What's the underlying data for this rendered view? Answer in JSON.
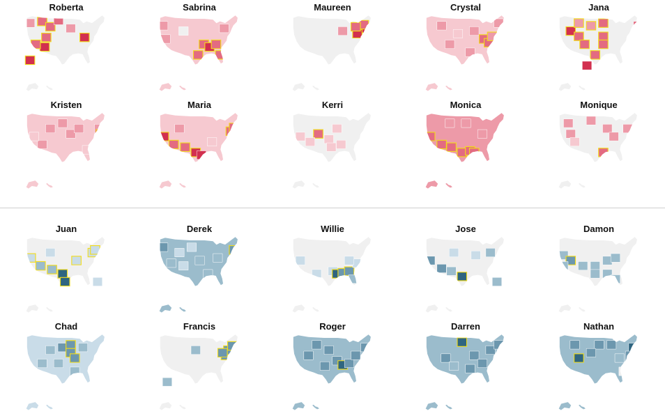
{
  "colors": {
    "land": "#f0f0f0",
    "highlight_border": "#f2dc1b",
    "female": [
      "#f0f0f0",
      "#f6c9d0",
      "#ed9aa8",
      "#e36b81",
      "#d2304f"
    ],
    "male": [
      "#f0f0f0",
      "#c9dce8",
      "#9bbccc",
      "#6c97ae",
      "#2f6580"
    ]
  },
  "groups": [
    {
      "name": "female",
      "maps": [
        {
          "name": "Roberta",
          "base": 0,
          "regions": [
            [
              0.05,
              0.15,
              2
            ],
            [
              0.2,
              0.12,
              3
            ],
            [
              0.3,
              0.22,
              3
            ],
            [
              0.25,
              0.42,
              3
            ],
            [
              0.23,
              0.6,
              4
            ],
            [
              0.12,
              0.55,
              3
            ],
            [
              0.4,
              0.1,
              3
            ],
            [
              0.55,
              0.25,
              2
            ],
            [
              0.72,
              0.42,
              4
            ],
            [
              0.05,
              0.85,
              4
            ]
          ],
          "highlights": [
            1,
            2,
            3,
            4,
            5,
            8,
            9
          ]
        },
        {
          "name": "Sabrina",
          "base": 1,
          "regions": [
            [
              0.05,
              0.2,
              2
            ],
            [
              0.08,
              0.45,
              2
            ],
            [
              0.55,
              0.55,
              3
            ],
            [
              0.62,
              0.6,
              4
            ],
            [
              0.7,
              0.55,
              3
            ],
            [
              0.75,
              0.75,
              3
            ],
            [
              0.48,
              0.75,
              3
            ],
            [
              0.8,
              0.25,
              2
            ],
            [
              0.3,
              0.3,
              0
            ]
          ],
          "highlights": [
            2,
            3,
            4,
            5,
            6
          ]
        },
        {
          "name": "Maureen",
          "base": 0,
          "regions": [
            [
              0.62,
              0.3,
              2
            ],
            [
              0.85,
              0.25,
              4
            ],
            [
              0.8,
              0.35,
              4
            ],
            [
              0.88,
              0.18,
              3
            ],
            [
              0.78,
              0.22,
              3
            ]
          ],
          "highlights": [
            1,
            2,
            3,
            4
          ]
        },
        {
          "name": "Crystal",
          "base": 1,
          "regions": [
            [
              0.2,
              0.2,
              2
            ],
            [
              0.4,
              0.35,
              1
            ],
            [
              0.6,
              0.3,
              2
            ],
            [
              0.72,
              0.45,
              3
            ],
            [
              0.78,
              0.52,
              3
            ],
            [
              0.82,
              0.4,
              2
            ],
            [
              0.55,
              0.7,
              2
            ],
            [
              0.3,
              0.55,
              2
            ],
            [
              0.9,
              0.15,
              2
            ]
          ],
          "highlights": [
            3,
            4,
            5
          ]
        },
        {
          "name": "Jana",
          "base": 0,
          "regions": [
            [
              0.15,
              0.3,
              4
            ],
            [
              0.25,
              0.4,
              3
            ],
            [
              0.25,
              0.15,
              2
            ],
            [
              0.4,
              0.2,
              2
            ],
            [
              0.55,
              0.15,
              3
            ],
            [
              0.55,
              0.4,
              3
            ],
            [
              0.55,
              0.55,
              3
            ],
            [
              0.45,
              0.75,
              3
            ],
            [
              0.32,
              0.55,
              3
            ],
            [
              0.35,
              0.95,
              4
            ],
            [
              0.98,
              0.2,
              3
            ]
          ],
          "highlights": [
            0,
            1,
            2,
            3,
            4,
            5,
            6,
            7,
            8
          ]
        },
        {
          "name": "Kristen",
          "base": 1,
          "regions": [
            [
              0.3,
              0.3,
              2
            ],
            [
              0.45,
              0.2,
              2
            ],
            [
              0.55,
              0.4,
              2
            ],
            [
              0.65,
              0.3,
              2
            ],
            [
              0.9,
              0.3,
              2
            ],
            [
              0.92,
              0.4,
              3
            ],
            [
              0.2,
              0.6,
              2
            ],
            [
              0.1,
              0.45,
              1
            ],
            [
              0.75,
              0.7,
              1
            ]
          ],
          "highlights": [
            5
          ]
        },
        {
          "name": "Maria",
          "base": 1,
          "regions": [
            [
              0.06,
              0.45,
              4
            ],
            [
              0.18,
              0.6,
              3
            ],
            [
              0.32,
              0.65,
              3
            ],
            [
              0.45,
              0.75,
              4
            ],
            [
              0.52,
              0.8,
              4
            ],
            [
              0.88,
              0.35,
              3
            ],
            [
              0.92,
              0.28,
              3
            ],
            [
              0.25,
              0.3,
              2
            ],
            [
              0.65,
              0.55,
              1
            ]
          ],
          "highlights": [
            0,
            1,
            2,
            3,
            5,
            6
          ]
        },
        {
          "name": "Kerri",
          "base": 0,
          "regions": [
            [
              0.32,
              0.4,
              3
            ],
            [
              0.45,
              0.5,
              1
            ],
            [
              0.55,
              0.3,
              1
            ],
            [
              0.6,
              0.6,
              1
            ],
            [
              0.48,
              0.65,
              1
            ],
            [
              0.22,
              0.55,
              1
            ],
            [
              0.1,
              0.45,
              1
            ],
            [
              0.98,
              0.4,
              2
            ]
          ],
          "highlights": [
            0
          ]
        },
        {
          "name": "Monica",
          "base": 2,
          "regions": [
            [
              0.06,
              0.45,
              3
            ],
            [
              0.2,
              0.6,
              3
            ],
            [
              0.32,
              0.65,
              3
            ],
            [
              0.45,
              0.75,
              3
            ],
            [
              0.55,
              0.72,
              3
            ],
            [
              0.6,
              0.75,
              3
            ],
            [
              0.3,
              0.2,
              2
            ],
            [
              0.5,
              0.2,
              2
            ],
            [
              0.7,
              0.4,
              2
            ]
          ],
          "highlights": [
            0,
            1,
            2,
            3,
            4,
            5
          ]
        },
        {
          "name": "Monique",
          "base": 0,
          "regions": [
            [
              0.12,
              0.2,
              2
            ],
            [
              0.15,
              0.4,
              2
            ],
            [
              0.4,
              0.15,
              2
            ],
            [
              0.6,
              0.3,
              2
            ],
            [
              0.68,
              0.45,
              2
            ],
            [
              0.85,
              0.3,
              2
            ],
            [
              0.55,
              0.75,
              3
            ],
            [
              0.2,
              0.55,
              1
            ]
          ],
          "highlights": [
            6
          ]
        }
      ]
    },
    {
      "name": "male",
      "maps": [
        {
          "name": "Juan",
          "base": 0,
          "regions": [
            [
              0.06,
              0.4,
              1
            ],
            [
              0.18,
              0.55,
              2
            ],
            [
              0.32,
              0.62,
              2
            ],
            [
              0.45,
              0.7,
              4
            ],
            [
              0.48,
              0.85,
              4
            ],
            [
              0.62,
              0.45,
              1
            ],
            [
              0.82,
              0.3,
              1
            ],
            [
              0.85,
              0.25,
              1
            ],
            [
              0.88,
              0.85,
              1
            ],
            [
              0.3,
              0.3,
              1
            ]
          ],
          "highlights": [
            0,
            1,
            2,
            3,
            4,
            5,
            6,
            7
          ]
        },
        {
          "name": "Derek",
          "base": 2,
          "regions": [
            [
              0.05,
              0.2,
              3
            ],
            [
              0.25,
              0.3,
              1
            ],
            [
              0.4,
              0.2,
              1
            ],
            [
              0.3,
              0.55,
              1
            ],
            [
              0.5,
              0.45,
              2
            ],
            [
              0.72,
              0.4,
              2
            ],
            [
              0.92,
              0.25,
              3
            ],
            [
              0.6,
              0.7,
              2
            ],
            [
              0.15,
              0.5,
              2
            ]
          ],
          "highlights": [
            6
          ]
        },
        {
          "name": "Willie",
          "base": 0,
          "regions": [
            [
              0.1,
              0.45,
              1
            ],
            [
              0.3,
              0.7,
              1
            ],
            [
              0.5,
              0.65,
              1
            ],
            [
              0.55,
              0.7,
              4
            ],
            [
              0.62,
              0.68,
              3
            ],
            [
              0.7,
              0.65,
              3
            ],
            [
              0.75,
              0.8,
              2
            ],
            [
              0.8,
              0.5,
              1
            ],
            [
              0.7,
              0.45,
              1
            ]
          ],
          "highlights": [
            3,
            4,
            5
          ]
        },
        {
          "name": "Jose",
          "base": 0,
          "regions": [
            [
              0.06,
              0.45,
              3
            ],
            [
              0.2,
              0.6,
              3
            ],
            [
              0.32,
              0.65,
              2
            ],
            [
              0.45,
              0.75,
              4
            ],
            [
              0.35,
              0.3,
              1
            ],
            [
              0.62,
              0.35,
              1
            ],
            [
              0.8,
              0.3,
              2
            ],
            [
              0.88,
              0.85,
              2
            ]
          ],
          "highlights": [
            3
          ]
        },
        {
          "name": "Damon",
          "base": 0,
          "regions": [
            [
              0.06,
              0.35,
              2
            ],
            [
              0.15,
              0.45,
              3
            ],
            [
              0.06,
              0.55,
              2
            ],
            [
              0.3,
              0.55,
              2
            ],
            [
              0.45,
              0.55,
              2
            ],
            [
              0.6,
              0.45,
              2
            ],
            [
              0.7,
              0.4,
              2
            ],
            [
              0.6,
              0.7,
              2
            ],
            [
              0.45,
              0.7,
              2
            ],
            [
              0.7,
              0.8,
              2
            ]
          ],
          "highlights": [
            1
          ]
        },
        {
          "name": "Chad",
          "base": 1,
          "regions": [
            [
              0.3,
              0.3,
              2
            ],
            [
              0.45,
              0.25,
              3
            ],
            [
              0.55,
              0.2,
              3
            ],
            [
              0.55,
              0.35,
              3
            ],
            [
              0.6,
              0.45,
              3
            ],
            [
              0.7,
              0.25,
              2
            ],
            [
              0.2,
              0.55,
              2
            ],
            [
              0.4,
              0.55,
              2
            ],
            [
              0.6,
              0.7,
              2
            ]
          ],
          "highlights": [
            2,
            3,
            4
          ]
        },
        {
          "name": "Francis",
          "base": 0,
          "regions": [
            [
              0.45,
              0.3,
              2
            ],
            [
              0.82,
              0.4,
              3
            ],
            [
              0.85,
              0.3,
              3
            ],
            [
              0.9,
              0.22,
              3
            ],
            [
              0.78,
              0.35,
              3
            ],
            [
              0.1,
              0.9,
              2
            ]
          ],
          "highlights": [
            1,
            2,
            3,
            4
          ]
        },
        {
          "name": "Roger",
          "base": 2,
          "regions": [
            [
              0.2,
              0.4,
              3
            ],
            [
              0.45,
              0.3,
              3
            ],
            [
              0.55,
              0.5,
              3
            ],
            [
              0.62,
              0.58,
              4
            ],
            [
              0.7,
              0.55,
              3
            ],
            [
              0.78,
              0.4,
              3
            ],
            [
              0.9,
              0.25,
              3
            ],
            [
              0.4,
              0.6,
              3
            ],
            [
              0.3,
              0.2,
              3
            ]
          ],
          "highlights": [
            3
          ]
        },
        {
          "name": "Darren",
          "base": 2,
          "regions": [
            [
              0.45,
              0.15,
              4
            ],
            [
              0.25,
              0.45,
              3
            ],
            [
              0.6,
              0.4,
              3
            ],
            [
              0.55,
              0.65,
              3
            ],
            [
              0.35,
              0.6,
              2
            ],
            [
              0.7,
              0.55,
              3
            ],
            [
              0.8,
              0.3,
              3
            ],
            [
              0.9,
              0.2,
              3
            ]
          ],
          "highlights": [
            0
          ]
        },
        {
          "name": "Nathan",
          "base": 2,
          "regions": [
            [
              0.25,
              0.45,
              4
            ],
            [
              0.5,
              0.2,
              3
            ],
            [
              0.65,
              0.2,
              3
            ],
            [
              0.2,
              0.2,
              3
            ],
            [
              0.4,
              0.35,
              3
            ],
            [
              0.75,
              0.45,
              2
            ],
            [
              0.8,
              0.7,
              0
            ],
            [
              0.92,
              0.25,
              4
            ],
            [
              0.88,
              0.4,
              3
            ]
          ],
          "highlights": [
            0
          ]
        }
      ]
    }
  ]
}
